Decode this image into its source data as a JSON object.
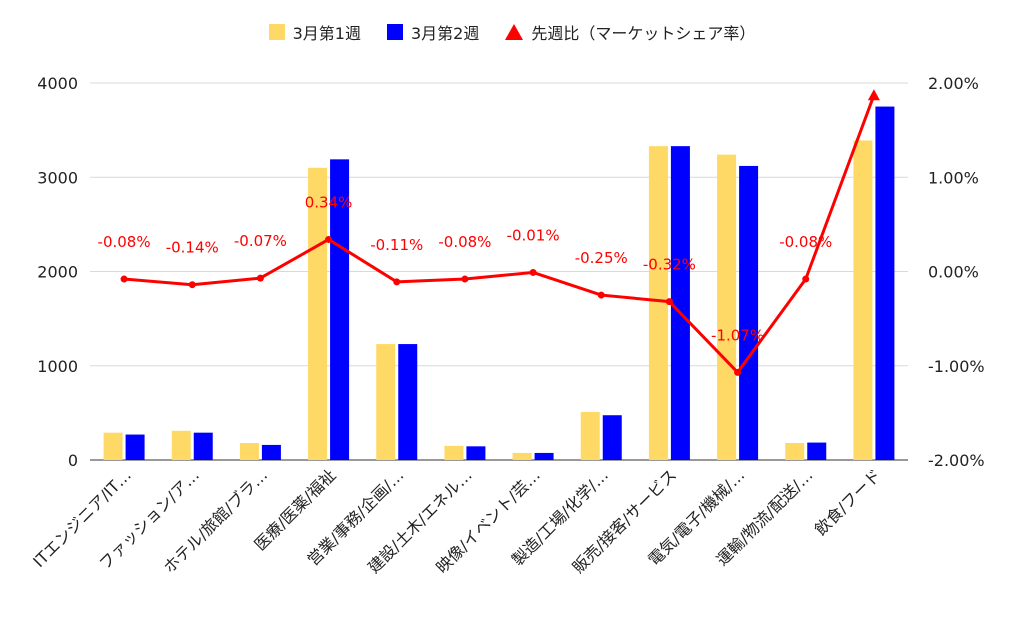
{
  "chart_data": {
    "type": "bar",
    "categories": [
      "ITエンジニア/IT…",
      "ファッション/ア…",
      "ホテル/旅館/ブラ…",
      "医療/医薬/福祉",
      "営業/事務/企画/…",
      "建設/土木/エネル…",
      "映像/イベント/芸…",
      "製造/工場/化学/…",
      "販売/接客/サービス",
      "電気/電子/機械/…",
      "運輸/物流/配送/…",
      "飲食/フード"
    ],
    "series": [
      {
        "name": "3月第1週",
        "type": "bar",
        "axis": "left",
        "color": "#ffd966",
        "values": [
          290,
          310,
          180,
          3100,
          1230,
          150,
          75,
          510,
          3330,
          3240,
          180,
          3390
        ]
      },
      {
        "name": "3月第2週",
        "type": "bar",
        "axis": "left",
        "color": "#0000ff",
        "values": [
          270,
          290,
          160,
          3190,
          1230,
          145,
          75,
          475,
          3330,
          3120,
          185,
          3750
        ]
      },
      {
        "name": "先週比（マーケットシェア率）",
        "type": "line",
        "axis": "right",
        "color": "#ff0000",
        "values": [
          -0.08,
          -0.14,
          -0.07,
          0.34,
          -0.11,
          -0.08,
          -0.01,
          -0.25,
          -0.32,
          -1.07,
          -0.08,
          1.87
        ],
        "labels": [
          "-0.08%",
          "-0.14%",
          "-0.07%",
          "0.34%",
          "-0.11%",
          "-0.08%",
          "-0.01%",
          "-0.25%",
          "-0.32%",
          "-1.07%",
          "-0.08%",
          ""
        ]
      }
    ],
    "y_left": {
      "min": 0,
      "max": 4000,
      "ticks": [
        "0",
        "1000",
        "2000",
        "3000",
        "4000"
      ]
    },
    "y_right": {
      "min": -2,
      "max": 2,
      "ticks": [
        "-2.00%",
        "-1.00%",
        "0.00%",
        "1.00%",
        "2.00%"
      ]
    },
    "grid": "horizontal",
    "legend": "top"
  }
}
